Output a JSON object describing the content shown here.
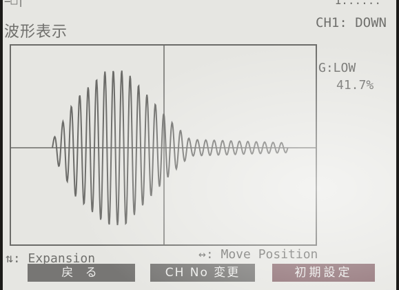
{
  "status": {
    "top_left": "=□|",
    "top_right": "1::::::"
  },
  "title": "波形表示",
  "channel_status": "CH1: DOWN",
  "gain": {
    "label": "G:LOW",
    "percent": "41.7%"
  },
  "hints": {
    "expansion": "⇅: Expansion",
    "move": "↔: Move Position"
  },
  "softkeys": {
    "back": "戻 る",
    "ch_change": "CH No 変更",
    "reset": "初期設定"
  },
  "colors": {
    "screen": "#e6e6e2",
    "trace": "#6b6b68",
    "softkey": "#777674",
    "softkey_accent": "#8b6b70"
  }
}
